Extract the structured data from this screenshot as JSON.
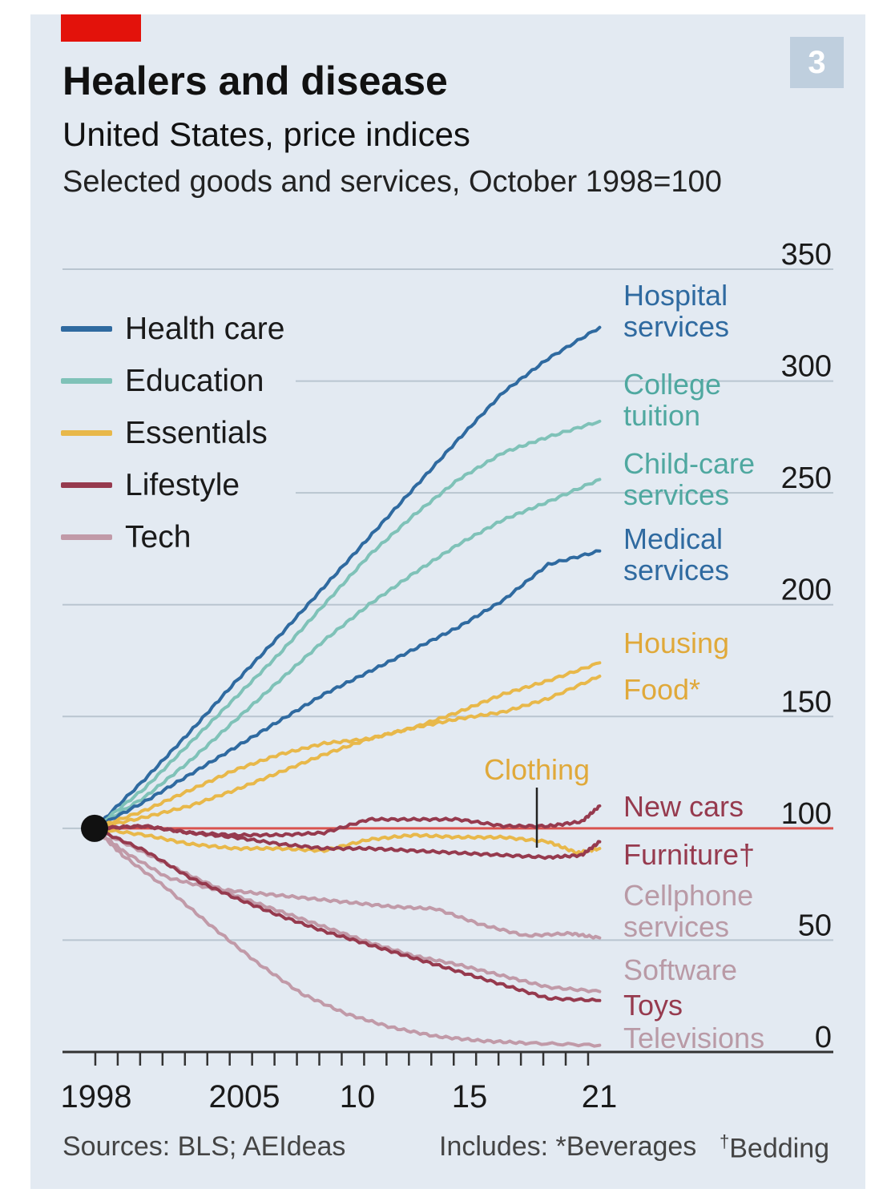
{
  "header": {
    "title": "Healers and disease",
    "subtitle": "United States, price indices",
    "description": "Selected goods and services, October 1998=100",
    "badge": "3"
  },
  "footer": {
    "sources": "Sources: BLS; AEIdeas",
    "includes": "Includes:  *Beverages",
    "bedding_mark": "†",
    "bedding": "Bedding"
  },
  "colors": {
    "panel": "#e3eaf2",
    "brand_red": "#e3120b",
    "health_care": "#2f6aa0",
    "education": "#7fc2b8",
    "essentials": "#e8b84a",
    "lifestyle": "#963a4e",
    "tech": "#c19aa8",
    "baseline": "#d9534f",
    "gridline": "#b9c5d0"
  },
  "chart_data": {
    "type": "line",
    "y_axis_side": "right",
    "ylim": [
      0,
      350
    ],
    "yticks": [
      "0",
      "50",
      "100",
      "150",
      "200",
      "250",
      "300",
      "350"
    ],
    "xlim": [
      1998.75,
      2021.5
    ],
    "xticks": [
      {
        "value": 1998,
        "label": "1998"
      },
      {
        "value": 2005,
        "label": "2005"
      },
      {
        "value": 2010,
        "label": "10"
      },
      {
        "value": 2015,
        "label": "15"
      },
      {
        "value": 2021,
        "label": "21"
      }
    ],
    "start_value": 100,
    "gridlines": true,
    "legend": {
      "position": "top-left",
      "entries": [
        {
          "name": "Health care",
          "color": "#2f6aa0"
        },
        {
          "name": "Education",
          "color": "#7fc2b8"
        },
        {
          "name": "Essentials",
          "color": "#e8b84a"
        },
        {
          "name": "Lifestyle",
          "color": "#963a4e"
        },
        {
          "name": "Tech",
          "color": "#c19aa8"
        }
      ]
    },
    "series": [
      {
        "name": "Hospital services",
        "group": "Health care",
        "x": [
          1998.75,
          2001,
          2003,
          2005,
          2007,
          2009,
          2011,
          2013,
          2015,
          2017,
          2019,
          2021.3
        ],
        "y": [
          100,
          122,
          143,
          165,
          186,
          208,
          230,
          252,
          274,
          295,
          310,
          324
        ]
      },
      {
        "name": "College tuition",
        "group": "Education",
        "x": [
          1998.75,
          2001,
          2003,
          2005,
          2007,
          2009,
          2011,
          2013,
          2015,
          2017,
          2019,
          2021.3
        ],
        "y": [
          100,
          118,
          138,
          158,
          178,
          200,
          222,
          240,
          256,
          268,
          275,
          282
        ]
      },
      {
        "name": "Child-care services",
        "group": "Education",
        "x": [
          1998.75,
          2001,
          2003,
          2005,
          2007,
          2009,
          2011,
          2013,
          2015,
          2017,
          2019,
          2021.3
        ],
        "y": [
          100,
          114,
          130,
          148,
          166,
          184,
          200,
          214,
          227,
          238,
          246,
          256
        ]
      },
      {
        "name": "Medical services",
        "group": "Health care",
        "x": [
          1998.75,
          2001,
          2003,
          2005,
          2007,
          2009,
          2011,
          2013,
          2015,
          2017,
          2019,
          2021.3
        ],
        "y": [
          100,
          112,
          124,
          136,
          148,
          160,
          170,
          180,
          190,
          202,
          218,
          224
        ]
      },
      {
        "name": "Housing",
        "group": "Essentials",
        "x": [
          1998.75,
          2001,
          2003,
          2005,
          2007,
          2009,
          2011,
          2013,
          2015,
          2017,
          2019,
          2021.3
        ],
        "y": [
          100,
          108,
          117,
          126,
          133,
          138,
          140,
          145,
          152,
          160,
          166,
          174
        ]
      },
      {
        "name": "Food*",
        "group": "Essentials",
        "x": [
          1998.75,
          2001,
          2003,
          2005,
          2007,
          2009,
          2011,
          2013,
          2015,
          2017,
          2019,
          2021.3
        ],
        "y": [
          100,
          105,
          110,
          117,
          125,
          133,
          140,
          145,
          149,
          152,
          158,
          168
        ]
      },
      {
        "name": "Clothing",
        "group": "Essentials",
        "x": [
          1998.75,
          2001,
          2003,
          2005,
          2007,
          2009,
          2011,
          2013,
          2015,
          2017,
          2019,
          2020.3,
          2021.3
        ],
        "y": [
          100,
          97,
          93,
          91,
          91,
          90,
          95,
          97,
          96,
          96,
          94,
          89,
          91
        ]
      },
      {
        "name": "New cars",
        "group": "Lifestyle",
        "x": [
          1998.75,
          2001,
          2003,
          2005,
          2007,
          2009,
          2011,
          2013,
          2015,
          2017,
          2019,
          2020.5,
          2021.3
        ],
        "y": [
          100,
          101,
          98,
          97,
          97,
          98,
          104,
          104,
          104,
          101,
          101,
          103,
          110
        ]
      },
      {
        "name": "Furniture†",
        "group": "Lifestyle",
        "x": [
          1998.75,
          2001,
          2003,
          2005,
          2007,
          2009,
          2011,
          2013,
          2015,
          2017,
          2019,
          2020.5,
          2021.3
        ],
        "y": [
          100,
          101,
          98,
          96,
          93,
          91,
          91,
          90,
          89,
          88,
          87,
          88,
          94
        ]
      },
      {
        "name": "Cellphone services",
        "group": "Tech",
        "x": [
          1998.75,
          2000,
          2002,
          2004,
          2006,
          2008,
          2010,
          2012,
          2014,
          2016,
          2018,
          2020,
          2021.3
        ],
        "y": [
          100,
          90,
          78,
          73,
          71,
          69,
          67,
          65,
          64,
          57,
          52,
          53,
          51
        ]
      },
      {
        "name": "Software",
        "group": "Tech",
        "x": [
          1998.75,
          2001,
          2003,
          2005,
          2007,
          2009,
          2011,
          2013,
          2015,
          2017,
          2019,
          2021.3
        ],
        "y": [
          100,
          89,
          79,
          70,
          63,
          56,
          49,
          43,
          39,
          34,
          29,
          27
        ]
      },
      {
        "name": "Toys",
        "group": "Lifestyle",
        "x": [
          1998.75,
          2001,
          2003,
          2005,
          2007,
          2009,
          2011,
          2013,
          2015,
          2017,
          2019,
          2021.3
        ],
        "y": [
          100,
          90,
          78,
          69,
          61,
          54,
          48,
          42,
          36,
          30,
          24,
          23
        ]
      },
      {
        "name": "Televisions",
        "group": "Tech",
        "x": [
          1998.75,
          2000,
          2002,
          2004,
          2006,
          2008,
          2010,
          2012,
          2014,
          2016,
          2018,
          2021.3
        ],
        "y": [
          100,
          88,
          73,
          56,
          40,
          26,
          17,
          11,
          7,
          5,
          4,
          3
        ]
      }
    ],
    "annotations": [
      {
        "text": "Hospital services",
        "color": "#2f6aa0"
      },
      {
        "text": "College tuition",
        "color": "#4fa8a0"
      },
      {
        "text": "Child-care services",
        "color": "#4fa8a0"
      },
      {
        "text": "Medical services",
        "color": "#2f6aa0"
      },
      {
        "text": "Housing",
        "color": "#e0a93a"
      },
      {
        "text": "Food*",
        "color": "#e0a93a"
      },
      {
        "text": "Clothing",
        "color": "#e0a93a"
      },
      {
        "text": "New cars",
        "color": "#963a4e"
      },
      {
        "text": "Furniture†",
        "color": "#963a4e"
      },
      {
        "text": "Cellphone services",
        "color": "#b99aa6"
      },
      {
        "text": "Software",
        "color": "#b99aa6"
      },
      {
        "text": "Toys",
        "color": "#963a4e"
      },
      {
        "text": "Televisions",
        "color": "#b99aa6"
      }
    ]
  }
}
